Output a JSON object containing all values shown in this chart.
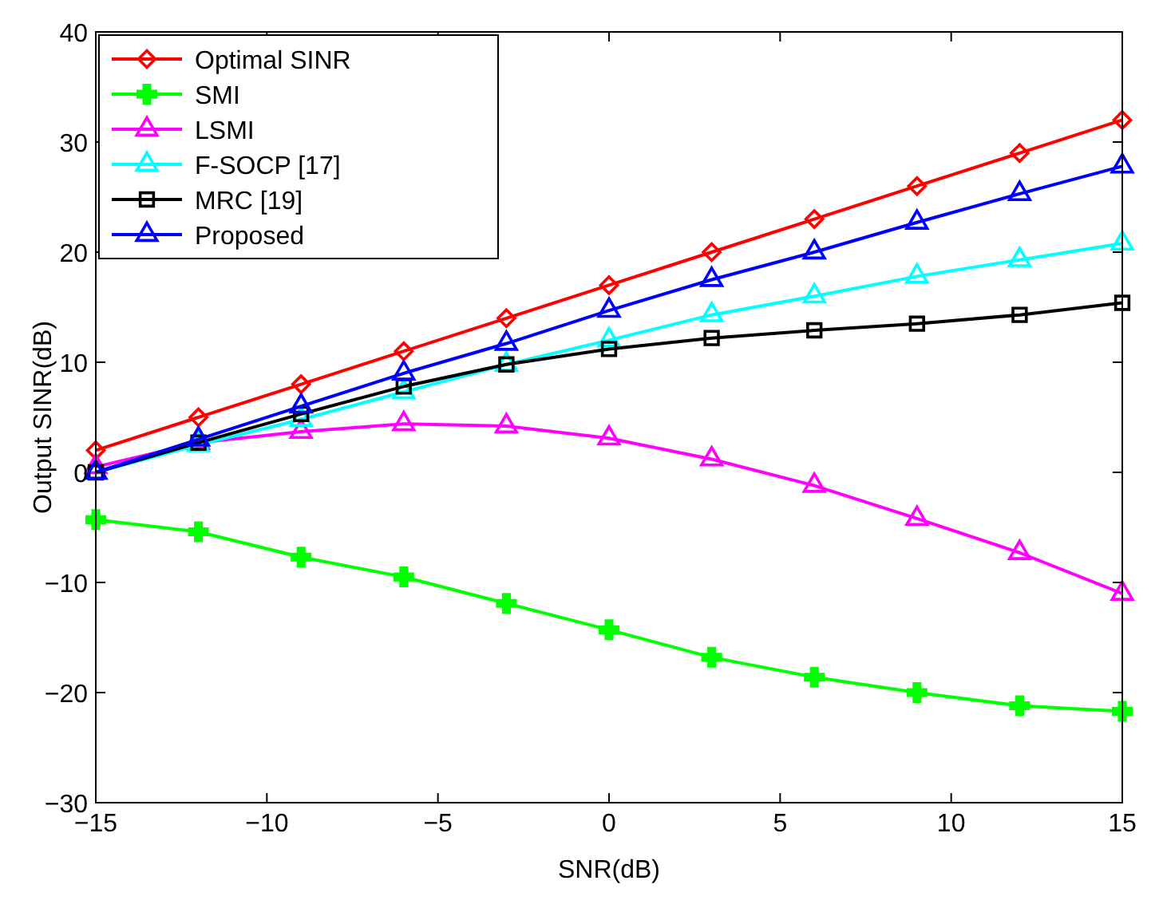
{
  "chart_data": {
    "type": "line",
    "xlabel": "SNR(dB)",
    "ylabel": "Output SINR(dB)",
    "x": [
      -15,
      -12,
      -9,
      -6,
      -3,
      0,
      3,
      6,
      9,
      12,
      15
    ],
    "xlim": [
      -15,
      15
    ],
    "xticks": [
      -15,
      -10,
      -5,
      0,
      5,
      10,
      15
    ],
    "ylim": [
      -30,
      40
    ],
    "yticks": [
      -30,
      -20,
      -10,
      0,
      10,
      20,
      30,
      40
    ],
    "grid": false,
    "legend": "top left",
    "line_style": "solid",
    "series": [
      {
        "name": "Optimal SINR",
        "color": "#ff0000",
        "marker": "diamond",
        "values": [
          2,
          5,
          8,
          11,
          14,
          17,
          20,
          23,
          26,
          29,
          32
        ]
      },
      {
        "name": "SMI",
        "color": "#00ff00",
        "marker": "cross",
        "values": [
          -4.3,
          -5.4,
          -7.7,
          -9.5,
          -11.9,
          -14.3,
          -16.8,
          -18.6,
          -20,
          -21.2,
          -21.7
        ]
      },
      {
        "name": "LSMI",
        "color": "#ff00ff",
        "marker": "triangle",
        "values": [
          0.5,
          2.7,
          3.7,
          4.4,
          4.2,
          3.1,
          1.2,
          -1.2,
          -4.2,
          -7.3,
          -11
        ]
      },
      {
        "name": "F-SOCP [17]",
        "color": "#00ffff",
        "marker": "triangle",
        "values": [
          0,
          2.5,
          4.8,
          7.3,
          9.8,
          12,
          14.3,
          16,
          17.8,
          19.3,
          20.8
        ]
      },
      {
        "name": "MRC [19]",
        "color": "#000000",
        "marker": "square",
        "values": [
          0,
          2.7,
          5.3,
          7.8,
          9.8,
          11.2,
          12.2,
          12.9,
          13.5,
          14.3,
          15.4
        ]
      },
      {
        "name": "Proposed",
        "color": "#0000ff",
        "marker": "triangle",
        "values": [
          0,
          3,
          6,
          9,
          11.7,
          14.7,
          17.5,
          20,
          22.7,
          25.3,
          27.8
        ]
      }
    ]
  }
}
